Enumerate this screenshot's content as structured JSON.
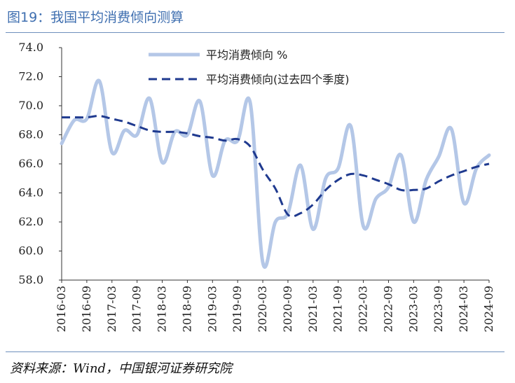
{
  "header": {
    "title": "图19：我国平均消费倾向测算"
  },
  "footer": {
    "source": "资料来源：Wind，中国银河证券研究院"
  },
  "chart_data": {
    "type": "line",
    "title": "",
    "xlabel": "",
    "ylabel": "",
    "ylim": [
      58.0,
      74.0
    ],
    "yticks": [
      "58.0",
      "60.0",
      "62.0",
      "64.0",
      "66.0",
      "68.0",
      "70.0",
      "72.0",
      "74.0"
    ],
    "xticks": [
      "2016-03",
      "2016-09",
      "2017-03",
      "2017-09",
      "2018-03",
      "2018-09",
      "2019-03",
      "2019-09",
      "2020-03",
      "2020-09",
      "2021-03",
      "2021-09",
      "2022-03",
      "2022-09",
      "2023-03",
      "2023-09",
      "2024-03",
      "2024-09"
    ],
    "x": [
      "2016-03",
      "2016-06",
      "2016-09",
      "2016-12",
      "2017-03",
      "2017-06",
      "2017-09",
      "2017-12",
      "2018-03",
      "2018-06",
      "2018-09",
      "2018-12",
      "2019-03",
      "2019-06",
      "2019-09",
      "2019-12",
      "2020-03",
      "2020-06",
      "2020-09",
      "2020-12",
      "2021-03",
      "2021-06",
      "2021-09",
      "2021-12",
      "2022-03",
      "2022-06",
      "2022-09",
      "2022-12",
      "2023-03",
      "2023-06",
      "2023-09",
      "2023-12",
      "2024-03",
      "2024-06",
      "2024-09"
    ],
    "series": [
      {
        "name": "平均消费倾向 %",
        "color": "#b4c7e7",
        "style": "solid",
        "values": [
          67.4,
          69.0,
          69.1,
          71.7,
          66.8,
          68.3,
          68.0,
          70.5,
          66.1,
          68.2,
          68.0,
          70.3,
          65.2,
          67.6,
          67.6,
          70.2,
          59.2,
          62.0,
          62.6,
          65.9,
          61.5,
          65.0,
          65.7,
          68.6,
          61.7,
          63.6,
          64.4,
          66.6,
          62.0,
          64.9,
          66.5,
          68.4,
          63.3,
          65.7,
          66.6
        ]
      },
      {
        "name": "平均消费倾向(过去四个季度)",
        "color": "#1f3a8f",
        "style": "dashed",
        "values": [
          69.2,
          69.2,
          69.2,
          69.3,
          69.1,
          68.9,
          68.6,
          68.3,
          68.2,
          68.2,
          68.1,
          67.9,
          67.8,
          67.6,
          67.7,
          67.2,
          65.6,
          64.3,
          62.5,
          62.6,
          63.2,
          64.2,
          64.9,
          65.3,
          65.2,
          64.9,
          64.6,
          64.2,
          64.2,
          64.3,
          64.8,
          65.2,
          65.5,
          65.8,
          66.0
        ]
      }
    ],
    "legend": "top-center",
    "grid": false
  }
}
